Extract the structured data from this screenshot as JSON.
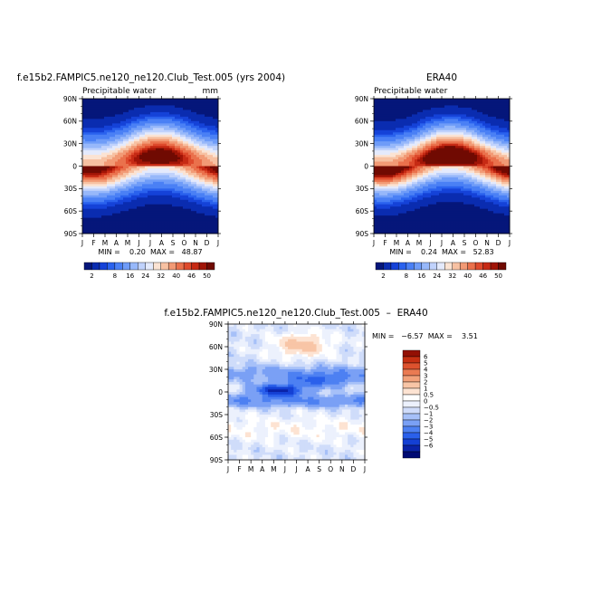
{
  "colors": {
    "model_palette": [
      "#05167a",
      "#0a2cb0",
      "#1542d8",
      "#2a62ee",
      "#4a80f5",
      "#6f9cf8",
      "#97b8fa",
      "#c0d2fc",
      "#e4eafc",
      "#fbe3d3",
      "#f7c1a2",
      "#f29a75",
      "#ea714c",
      "#de4a2c",
      "#c62a14",
      "#a01406",
      "#700a02"
    ],
    "diff_palette": [
      "#000a73",
      "#0a23a8",
      "#1440d4",
      "#2a60eb",
      "#4d80f2",
      "#7aa0f5",
      "#a6c0f8",
      "#cfdcfa",
      "#ecf1fd",
      "#ffffff",
      "#fde3d2",
      "#f8c5a6",
      "#f2a17a",
      "#ea7a52",
      "#dd522e",
      "#c52f12",
      "#931004"
    ]
  },
  "chart_data": [
    {
      "type": "heatmap",
      "title": "f.e15b2.FAMPIC5.ne120_ne120.Club_Test.005 (yrs 2004)",
      "subtitle_left": "Precipitable water",
      "subtitle_right": "mm",
      "x_ticks": [
        "J",
        "F",
        "M",
        "A",
        "M",
        "J",
        "J",
        "A",
        "S",
        "O",
        "N",
        "D",
        "J"
      ],
      "y_ticks": [
        "90N",
        "60N",
        "30N",
        "0",
        "30S",
        "60S",
        "90S"
      ],
      "y_range": [
        -90,
        90
      ],
      "stats_text": "MIN =    0.20  MAX =   48.87",
      "min": 0.2,
      "max": 48.87,
      "field": "model",
      "colorbar": {
        "levels": [
          2,
          4,
          6,
          8,
          12,
          16,
          20,
          24,
          28,
          32,
          36,
          40,
          44,
          46,
          48,
          50
        ],
        "labels": [
          "2",
          "8",
          "16",
          "24",
          "32",
          "40",
          "46",
          "50"
        ]
      }
    },
    {
      "type": "heatmap",
      "title": "ERA40",
      "subtitle_left": "Precipitable water",
      "subtitle_right": "",
      "x_ticks": [
        "J",
        "F",
        "M",
        "A",
        "M",
        "J",
        "J",
        "A",
        "S",
        "O",
        "N",
        "D",
        "J"
      ],
      "y_ticks": [
        "90N",
        "60N",
        "30N",
        "0",
        "30S",
        "60S",
        "90S"
      ],
      "y_range": [
        -90,
        90
      ],
      "stats_text": "MIN =    0.24  MAX =   52.83",
      "min": 0.24,
      "max": 52.83,
      "field": "era40",
      "colorbar": {
        "levels": [
          2,
          4,
          6,
          8,
          12,
          16,
          20,
          24,
          28,
          32,
          36,
          40,
          44,
          46,
          48,
          50
        ],
        "labels": [
          "2",
          "8",
          "16",
          "24",
          "32",
          "40",
          "46",
          "50"
        ]
      }
    },
    {
      "type": "heatmap",
      "title": "f.e15b2.FAMPIC5.ne120_ne120.Club_Test.005  –  ERA40",
      "x_ticks": [
        "J",
        "F",
        "M",
        "A",
        "M",
        "J",
        "J",
        "A",
        "S",
        "O",
        "N",
        "D",
        "J"
      ],
      "y_ticks": [
        "90N",
        "60N",
        "30N",
        "0",
        "30S",
        "60S",
        "90S"
      ],
      "y_range": [
        -90,
        90
      ],
      "stats_text": "MIN =   −6.57  MAX =    3.51",
      "min": -6.57,
      "max": 3.51,
      "field": "difference",
      "colorbar": {
        "levels": [
          -6,
          -5,
          -4,
          -3,
          -2,
          -1,
          -0.5,
          0,
          0.5,
          1,
          2,
          3,
          4,
          5,
          6
        ],
        "labels": [
          "6",
          "5",
          "4",
          "3",
          "2",
          "1",
          "0.5",
          "0",
          "−0.5",
          "−1",
          "−2",
          "−3",
          "−4",
          "−5",
          "−6"
        ]
      }
    }
  ]
}
